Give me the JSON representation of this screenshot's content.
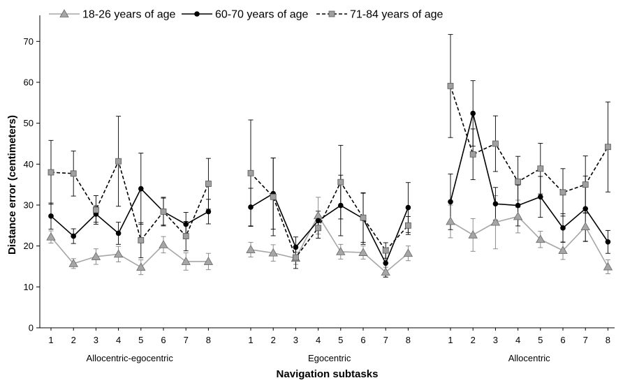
{
  "chart_data": {
    "type": "line",
    "title": "",
    "xlabel": "Navigation subtasks",
    "ylabel": "Distance error (centimeters)",
    "ylim": [
      0,
      75
    ],
    "yticks": [
      0,
      10,
      20,
      30,
      40,
      50,
      60,
      70
    ],
    "ytick_labels": [
      "0",
      "10",
      "20",
      "30",
      "40",
      "50",
      "60",
      "70"
    ],
    "legend_position": "top",
    "groups": [
      {
        "label": "Allocentric-egocentric",
        "categories": [
          "1",
          "2",
          "3",
          "4",
          "5",
          "6",
          "7",
          "8"
        ]
      },
      {
        "label": "Egocentric",
        "categories": [
          "1",
          "2",
          "3",
          "4",
          "5",
          "6",
          "7",
          "8"
        ]
      },
      {
        "label": "Allocentric",
        "categories": [
          "1",
          "2",
          "3",
          "4",
          "5",
          "6",
          "7",
          "8"
        ]
      }
    ],
    "series": [
      {
        "name": "18-26 years of age",
        "color": "#a6a6a6",
        "marker": "triangle",
        "line_style": "solid",
        "values": [
          [
            22.2,
            15.7,
            17.4,
            18.0,
            14.8,
            20.3,
            16.2,
            16.2
          ],
          [
            19.1,
            18.3,
            17.0,
            27.4,
            18.6,
            18.4,
            13.6,
            18.2
          ],
          [
            26.0,
            22.7,
            25.8,
            27.2,
            21.6,
            18.9,
            24.7,
            14.9
          ]
        ],
        "errors": [
          [
            1.5,
            1.2,
            1.9,
            1.9,
            1.8,
            2.0,
            2.1,
            2.0
          ],
          [
            1.8,
            2.0,
            1.5,
            4.5,
            1.8,
            1.6,
            1.2,
            1.8
          ],
          [
            4.0,
            4.0,
            6.5,
            4.0,
            2.0,
            2.2,
            3.5,
            1.7
          ]
        ]
      },
      {
        "name": "60-70 years of age",
        "color": "#000000",
        "marker": "circle",
        "line_style": "solid",
        "values": [
          [
            27.3,
            22.4,
            27.8,
            23.1,
            34.0,
            28.4,
            25.3,
            28.4
          ],
          [
            29.5,
            32.8,
            19.7,
            26.2,
            29.9,
            26.7,
            15.8,
            29.4
          ],
          [
            30.8,
            52.4,
            30.3,
            29.9,
            32.0,
            24.4,
            29.1,
            21.0
          ]
        ],
        "errors": [
          [
            3.2,
            1.8,
            2.0,
            2.7,
            8.7,
            3.3,
            2.9,
            3.0
          ],
          [
            4.6,
            8.7,
            2.5,
            2.3,
            7.4,
            6.3,
            3.4,
            6.1
          ],
          [
            6.8,
            8.0,
            4.0,
            5.0,
            5.0,
            3.5,
            8.0,
            2.8
          ]
        ]
      },
      {
        "name": "71-84 years of age",
        "color": "#7f7f7f",
        "marker": "square",
        "line_style": "dashed",
        "values": [
          [
            38.0,
            37.7,
            28.8,
            40.7,
            21.4,
            28.4,
            22.4,
            35.2
          ],
          [
            37.8,
            32.0,
            17.2,
            24.4,
            35.6,
            26.9,
            18.9,
            25.0
          ],
          [
            59.1,
            42.4,
            45.0,
            35.7,
            38.9,
            33.1,
            35.0,
            44.2
          ]
        ],
        "errors": [
          [
            7.8,
            5.5,
            3.5,
            11.0,
            4.3,
            3.5,
            3.6,
            6.2
          ],
          [
            13.0,
            9.5,
            2.7,
            2.5,
            9.0,
            6.0,
            1.9,
            2.2
          ],
          [
            12.6,
            6.2,
            6.8,
            6.2,
            6.2,
            5.8,
            7.0,
            11.0
          ]
        ]
      }
    ]
  }
}
